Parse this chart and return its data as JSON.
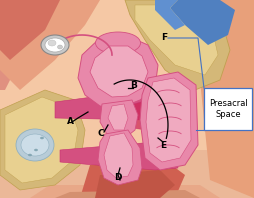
{
  "background_color": "#f2c49e",
  "label_A": "A",
  "label_B": "B",
  "label_C": "C",
  "label_D": "D",
  "label_E": "E",
  "label_F": "F",
  "annotation_text": "Presacral\nSpace",
  "annotation_box_color": "#4472c4",
  "label_font_size": 6.5,
  "annotation_font_size": 6,
  "label_color": "#000000",
  "fig_width": 2.54,
  "fig_height": 1.98,
  "dpi": 100,
  "skin_light": "#f5c8a5",
  "skin_dark": "#e8a07a",
  "skin_red": "#e8806a",
  "bone_tan": "#d4b878",
  "bone_edge": "#c0a050",
  "blue_strip": "#5080c0",
  "organ_pink": "#e888aa",
  "organ_dark_pink": "#d45080",
  "organ_bright": "#cc2255",
  "organ_light": "#f0aac0",
  "organ_magenta": "#c83070",
  "fat_yellow": "#e8d090",
  "bladder_blue": "#b8ccd8",
  "white": "#ffffff",
  "gray_ovary": "#c8c8c8"
}
